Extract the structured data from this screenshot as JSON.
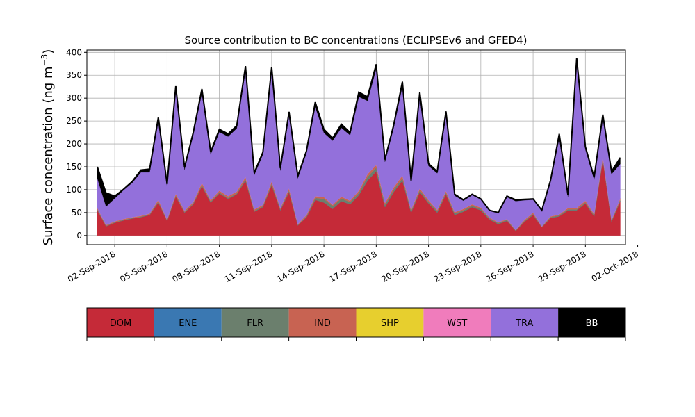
{
  "chart_data": {
    "type": "area",
    "title": "Source contribution to BC concentrations (ECLIPSEv6 and GFED4)",
    "ylabel": "Surface concentration (ng m",
    "ylabel_sup": "−3",
    "ylabel_close": ")",
    "xlabel": "",
    "ylim": [
      -20,
      405
    ],
    "yticks": [
      0,
      50,
      100,
      150,
      200,
      250,
      300,
      350,
      400
    ],
    "xlim": [
      0.4,
      31.3
    ],
    "grid": true,
    "stacked": true,
    "xtick_positions": [
      2,
      5,
      8,
      11,
      14,
      17,
      20,
      23,
      26,
      29,
      32
    ],
    "xtick_labels": [
      "02-Sep-2018",
      "05-Sep-2018",
      "08-Sep-2018",
      "11-Sep-2018",
      "14-Sep-2018",
      "17-Sep-2018",
      "20-Sep-2018",
      "23-Sep-2018",
      "26-Sep-2018",
      "29-Sep-2018",
      "02-Oct-2018"
    ],
    "x": [
      1.0,
      1.5,
      2.0,
      2.5,
      3.0,
      3.5,
      4.0,
      4.5,
      5.0,
      5.5,
      6.0,
      6.5,
      7.0,
      7.5,
      8.0,
      8.5,
      9.0,
      9.5,
      10.0,
      10.5,
      11.0,
      11.5,
      12.0,
      12.5,
      13.0,
      13.5,
      14.0,
      14.5,
      15.0,
      15.5,
      16.0,
      16.5,
      17.0,
      17.5,
      18.0,
      18.5,
      19.0,
      19.5,
      20.0,
      20.5,
      21.0,
      21.5,
      22.0,
      22.5,
      23.0,
      23.5,
      24.0,
      24.5,
      25.0,
      25.5,
      26.0,
      26.5,
      27.0,
      27.5,
      28.0,
      28.5,
      29.0,
      29.5,
      30.0,
      30.5,
      31.0
    ],
    "series": [
      {
        "name": "DOM",
        "color": "#c52a38",
        "values": [
          55,
          20,
          28,
          33,
          37,
          40,
          45,
          72,
          32,
          85,
          50,
          68,
          108,
          72,
          92,
          80,
          90,
          120,
          52,
          62,
          110,
          55,
          95,
          22,
          40,
          78,
          72,
          58,
          75,
          68,
          88,
          120,
          140,
          62,
          95,
          120,
          50,
          95,
          70,
          50,
          90,
          45,
          52,
          62,
          55,
          35,
          25,
          32,
          10,
          30,
          45,
          18,
          38,
          42,
          55,
          55,
          70,
          42,
          165,
          30,
          75
        ]
      },
      {
        "name": "ENE",
        "color": "#3a78b2",
        "values": [
          0,
          0,
          0,
          0,
          0,
          0,
          0,
          0,
          0,
          0,
          0,
          0,
          0,
          0,
          0,
          0,
          0,
          0,
          0,
          0,
          0,
          0,
          0,
          0,
          0,
          0,
          0,
          0,
          0,
          0,
          0,
          0,
          0,
          0,
          0,
          0,
          0,
          0,
          0,
          0,
          0,
          0,
          0,
          0,
          0,
          0,
          0,
          0,
          0,
          0,
          0,
          0,
          0,
          0,
          0,
          0,
          0,
          0,
          0,
          0,
          0
        ]
      },
      {
        "name": "FLR",
        "color": "#6b7f6d",
        "values": [
          2,
          1,
          1,
          1,
          1,
          1,
          1,
          2,
          1,
          2,
          1,
          2,
          2,
          2,
          2,
          2,
          2,
          3,
          2,
          2,
          3,
          2,
          3,
          1,
          2,
          4,
          8,
          6,
          6,
          5,
          5,
          8,
          8,
          5,
          5,
          5,
          3,
          4,
          3,
          3,
          3,
          3,
          3,
          3,
          3,
          2,
          2,
          2,
          1,
          2,
          2,
          1,
          2,
          2,
          2,
          2,
          2,
          2,
          2,
          2,
          2
        ]
      },
      {
        "name": "IND",
        "color": "#c86352",
        "values": [
          3,
          2,
          2,
          2,
          2,
          2,
          2,
          4,
          2,
          4,
          3,
          3,
          5,
          3,
          4,
          4,
          4,
          5,
          3,
          3,
          5,
          3,
          5,
          2,
          3,
          4,
          4,
          3,
          4,
          3,
          5,
          6,
          6,
          4,
          5,
          6,
          3,
          4,
          4,
          3,
          4,
          3,
          3,
          3,
          3,
          2,
          2,
          2,
          1,
          2,
          3,
          1,
          2,
          2,
          3,
          3,
          4,
          3,
          5,
          2,
          4
        ]
      },
      {
        "name": "SHP",
        "color": "#e7cf2e",
        "values": [
          0,
          0,
          0,
          0,
          0,
          0,
          0,
          0,
          0,
          0,
          0,
          0,
          0,
          0,
          0,
          0,
          0,
          0,
          0,
          0,
          0,
          0,
          0,
          0,
          0,
          0,
          0,
          0,
          0,
          0,
          0,
          0,
          0,
          0,
          0,
          0,
          0,
          0,
          0,
          0,
          0,
          0,
          0,
          0,
          0,
          0,
          0,
          0,
          0,
          0,
          0,
          0,
          0,
          0,
          0,
          0,
          0,
          0,
          0,
          0,
          0
        ]
      },
      {
        "name": "WST",
        "color": "#f07cbc",
        "values": [
          0,
          0,
          0,
          0,
          0,
          0,
          0,
          0,
          0,
          0,
          0,
          0,
          0,
          0,
          0,
          0,
          0,
          0,
          0,
          0,
          0,
          0,
          0,
          0,
          0,
          0,
          0,
          0,
          0,
          0,
          0,
          0,
          0,
          0,
          0,
          0,
          0,
          0,
          0,
          0,
          0,
          0,
          0,
          0,
          0,
          0,
          0,
          0,
          0,
          0,
          0,
          0,
          0,
          0,
          0,
          0,
          0,
          0,
          0,
          0,
          0
        ]
      },
      {
        "name": "TRA",
        "color": "#9370db",
        "values": [
          65,
          40,
          50,
          63,
          75,
          95,
          90,
          172,
          72,
          225,
          90,
          146,
          196,
          100,
          128,
          130,
          138,
          232,
          75,
          110,
          240,
          82,
          158,
          100,
          135,
          195,
          140,
          140,
          150,
          143,
          205,
          160,
          210,
          90,
          130,
          195,
          60,
          200,
          75,
          80,
          165,
          36,
          18,
          20,
          18,
          15,
          20,
          48,
          63,
          43,
          28,
          33,
          76,
          166,
          25,
          315,
          112,
          75,
          85,
          100,
          75
        ]
      },
      {
        "name": "BB",
        "color": "#000000",
        "values": [
          25,
          30,
          5,
          2,
          3,
          5,
          7,
          8,
          5,
          10,
          5,
          6,
          9,
          5,
          6,
          6,
          6,
          10,
          5,
          5,
          10,
          5,
          9,
          5,
          5,
          10,
          8,
          6,
          8,
          6,
          10,
          9,
          10,
          5,
          6,
          10,
          4,
          10,
          5,
          4,
          9,
          3,
          2,
          2,
          1,
          1,
          1,
          2,
          3,
          2,
          2,
          2,
          3,
          10,
          3,
          12,
          6,
          5,
          7,
          6,
          14
        ]
      }
    ]
  },
  "legend": {
    "items": [
      {
        "label": "DOM",
        "color": "#c52a38",
        "text_color": "#000000"
      },
      {
        "label": "ENE",
        "color": "#3a78b2",
        "text_color": "#000000"
      },
      {
        "label": "FLR",
        "color": "#6b7f6d",
        "text_color": "#000000"
      },
      {
        "label": "IND",
        "color": "#c86352",
        "text_color": "#000000"
      },
      {
        "label": "SHP",
        "color": "#e7cf2e",
        "text_color": "#000000"
      },
      {
        "label": "WST",
        "color": "#f07cbc",
        "text_color": "#000000"
      },
      {
        "label": "TRA",
        "color": "#9370db",
        "text_color": "#000000"
      },
      {
        "label": "BB",
        "color": "#000000",
        "text_color": "#ffffff"
      }
    ]
  }
}
